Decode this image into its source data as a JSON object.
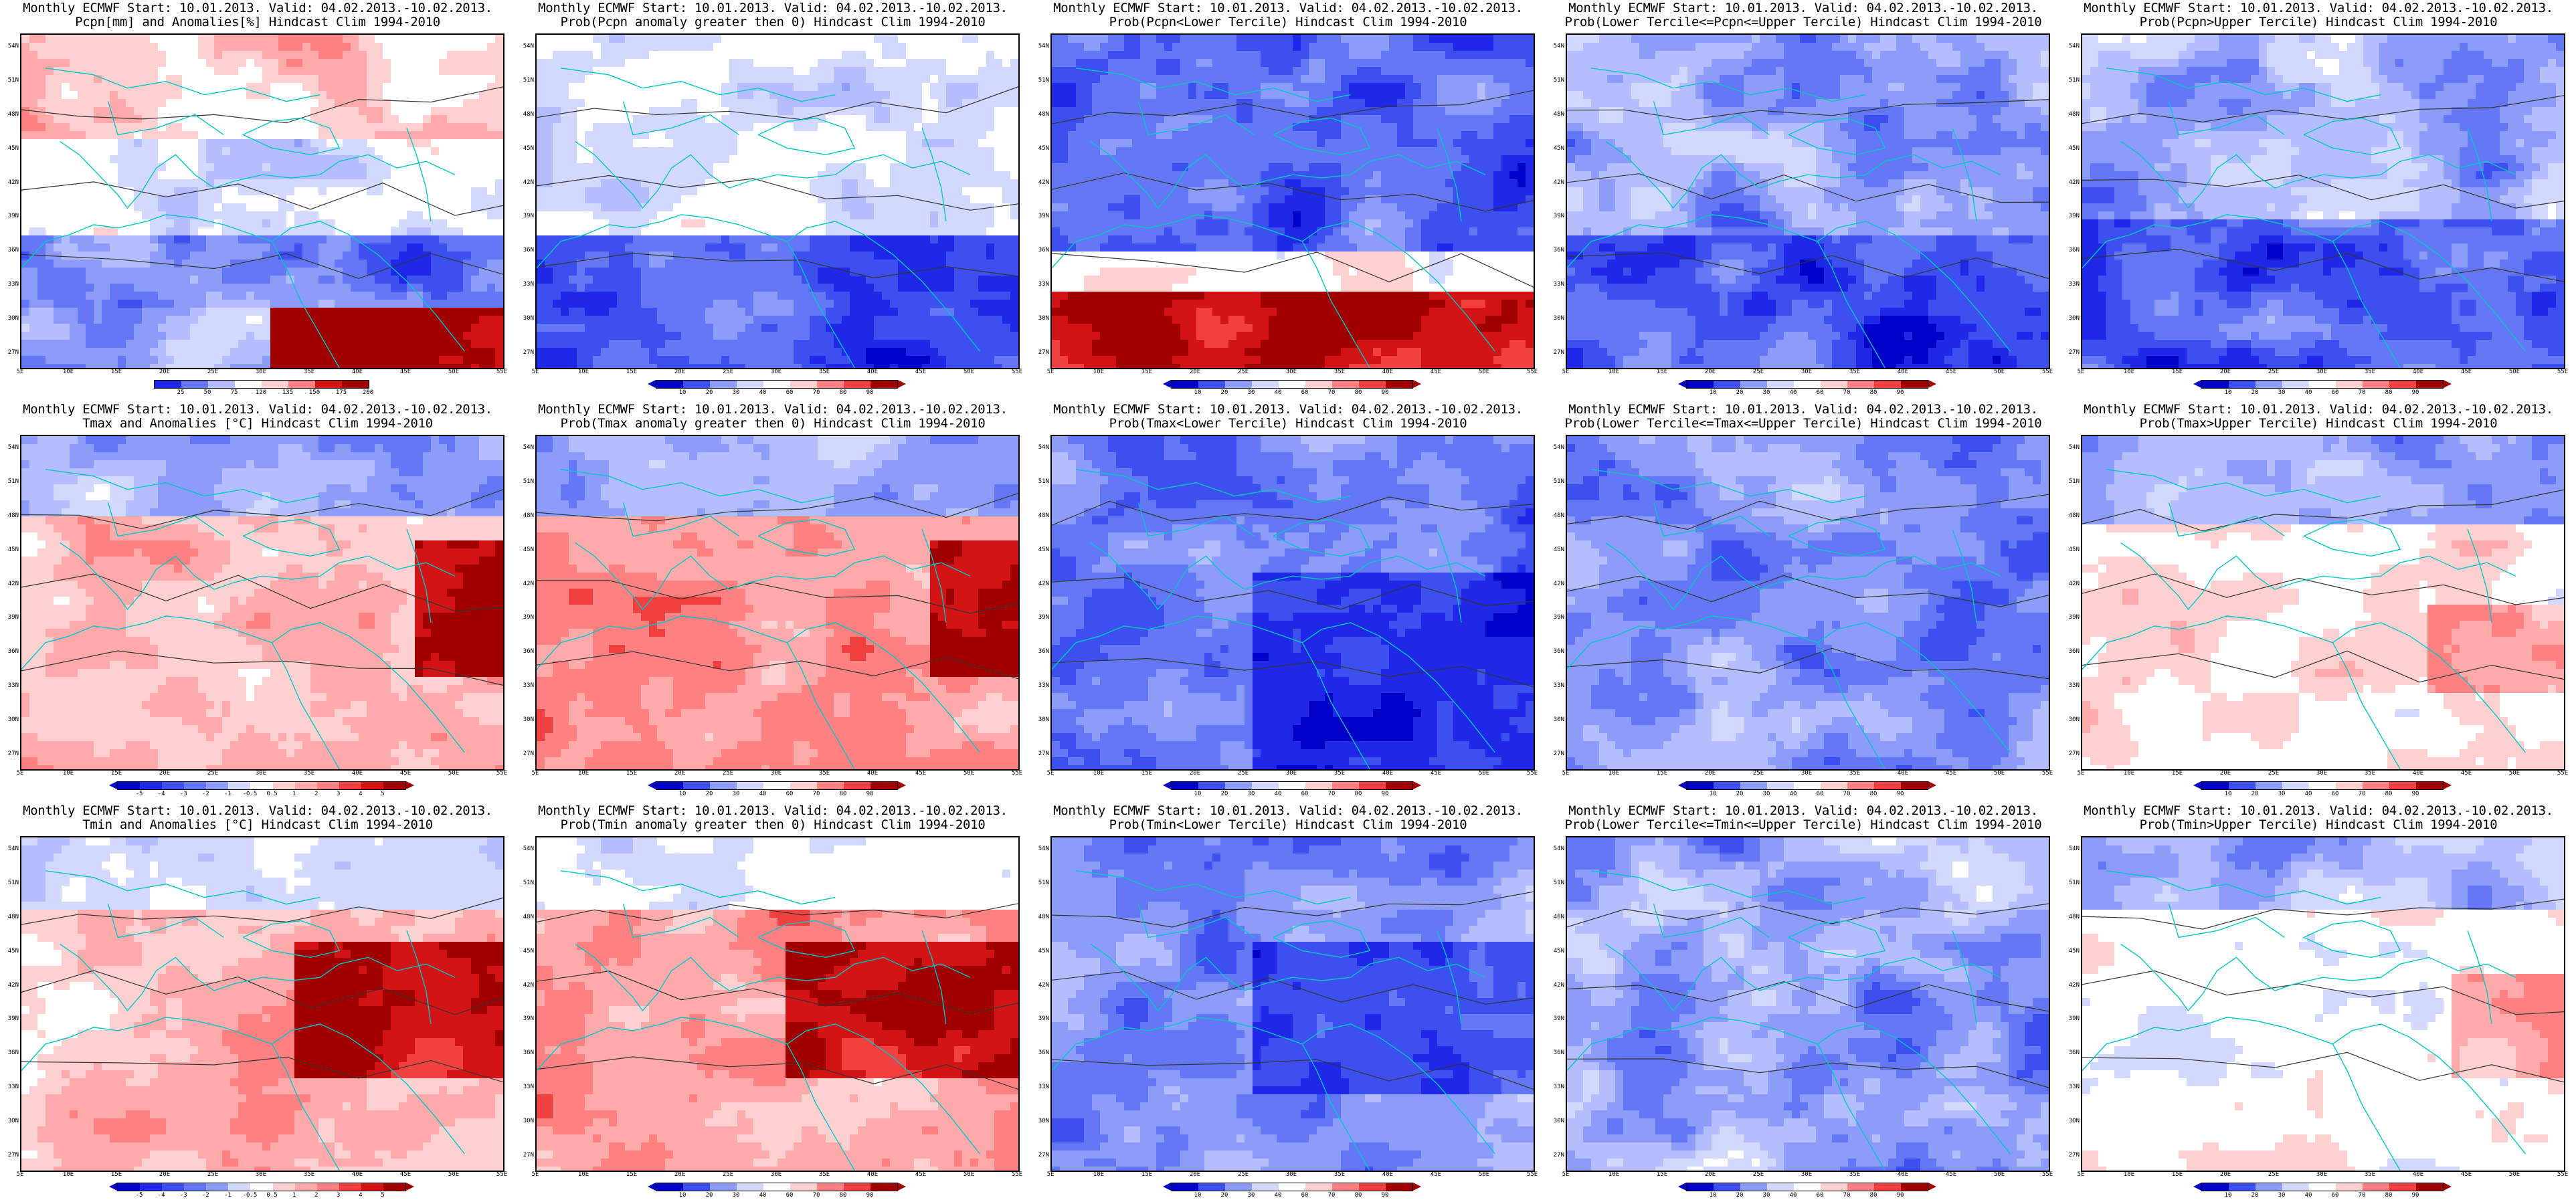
{
  "title_line1": "Monthly ECMWF Start: 10.01.2013. Valid: 04.02.2013.-10.02.2013.",
  "lat_labels": [
    "54N",
    "51N",
    "48N",
    "45N",
    "42N",
    "39N",
    "36N",
    "33N",
    "30N",
    "27N"
  ],
  "lon_labels": [
    "5E",
    "10E",
    "15E",
    "20E",
    "25E",
    "30E",
    "35E",
    "40E",
    "45E",
    "50E",
    "55E"
  ],
  "colors": {
    "blue_scale": [
      "#0000c8",
      "#1e28e6",
      "#3c50f0",
      "#6478f5",
      "#8c9cf8",
      "#b4beff",
      "#d2d8ff"
    ],
    "red_scale": [
      "#ffd0d0",
      "#ffaaaa",
      "#ff8080",
      "#f04040",
      "#d21414",
      "#a00000"
    ],
    "white": "#ffffff",
    "coast": "#00c8c8",
    "contour": "#333333"
  },
  "panels": [
    {
      "subtitle": "Pcpn[mm] and Anomalies[%] Hindcast Clim 1994-2010",
      "scheme": "pcpn_anom",
      "colorbar": {
        "labels": [
          "25",
          "50",
          "75",
          "120",
          "135",
          "150",
          "175",
          "200"
        ],
        "colors": [
          "#1e28e6",
          "#6478f5",
          "#b4beff",
          "#ffffff",
          "#ffd0d0",
          "#ff8080",
          "#d21414",
          "#a00000"
        ],
        "has_tri": false
      }
    },
    {
      "subtitle": "Prob(Pcpn anomaly greater then 0) Hindcast Clim 1994-2010",
      "scheme": "pcpn_prob0",
      "colorbar": {
        "labels": [
          "10",
          "20",
          "30",
          "40",
          "60",
          "70",
          "80",
          "90"
        ],
        "colors": [
          "#0000c8",
          "#3c50f0",
          "#8c9cf8",
          "#d2d8ff",
          "#ffffff",
          "#ffd0d0",
          "#ff8080",
          "#f04040",
          "#a00000"
        ],
        "has_tri": true
      }
    },
    {
      "subtitle": "Prob(Pcpn<Lower Tercile) Hindcast Clim 1994-2010",
      "scheme": "pcpn_low",
      "colorbar": {
        "labels": [
          "10",
          "20",
          "30",
          "40",
          "60",
          "70",
          "80",
          "90"
        ],
        "colors": [
          "#0000c8",
          "#3c50f0",
          "#8c9cf8",
          "#d2d8ff",
          "#ffffff",
          "#ffd0d0",
          "#ff8080",
          "#f04040",
          "#a00000"
        ],
        "has_tri": true
      }
    },
    {
      "subtitle": "Prob(Lower Tercile<=Pcpn<=Upper Tercile) Hindcast Clim 1994-2010",
      "scheme": "pcpn_mid",
      "colorbar": {
        "labels": [
          "10",
          "20",
          "30",
          "40",
          "60",
          "70",
          "80",
          "90"
        ],
        "colors": [
          "#0000c8",
          "#3c50f0",
          "#8c9cf8",
          "#d2d8ff",
          "#ffffff",
          "#ffd0d0",
          "#ff8080",
          "#f04040",
          "#a00000"
        ],
        "has_tri": true
      }
    },
    {
      "subtitle": "Prob(Pcpn>Upper Tercile) Hindcast Clim 1994-2010",
      "scheme": "pcpn_up",
      "colorbar": {
        "labels": [
          "10",
          "20",
          "30",
          "40",
          "60",
          "70",
          "80",
          "90"
        ],
        "colors": [
          "#0000c8",
          "#3c50f0",
          "#8c9cf8",
          "#d2d8ff",
          "#ffffff",
          "#ffd0d0",
          "#ff8080",
          "#f04040",
          "#a00000"
        ],
        "has_tri": true
      }
    },
    {
      "subtitle": "Tmax and Anomalies [°C] Hindcast Clim 1994-2010",
      "scheme": "tmax_anom",
      "colorbar": {
        "labels": [
          "-5",
          "-4",
          "-3",
          "-2",
          "-1",
          "-0.5",
          "0.5",
          "1",
          "2",
          "3",
          "4",
          "5"
        ],
        "colors": [
          "#0000c8",
          "#1e28e6",
          "#3c50f0",
          "#6478f5",
          "#8c9cf8",
          "#d2d8ff",
          "#ffffff",
          "#ffd0d0",
          "#ffaaaa",
          "#ff8080",
          "#f04040",
          "#d21414",
          "#a00000"
        ],
        "has_tri": true
      }
    },
    {
      "subtitle": "Prob(Tmax anomaly greater then 0) Hindcast Clim 1994-2010",
      "scheme": "tmax_prob0",
      "colorbar": {
        "labels": [
          "10",
          "20",
          "30",
          "40",
          "60",
          "70",
          "80",
          "90"
        ],
        "colors": [
          "#0000c8",
          "#3c50f0",
          "#8c9cf8",
          "#d2d8ff",
          "#ffffff",
          "#ffd0d0",
          "#ff8080",
          "#f04040",
          "#a00000"
        ],
        "has_tri": true
      }
    },
    {
      "subtitle": "Prob(Tmax<Lower Tercile) Hindcast Clim 1994-2010",
      "scheme": "tmax_low",
      "colorbar": {
        "labels": [
          "10",
          "20",
          "30",
          "40",
          "60",
          "70",
          "80",
          "90"
        ],
        "colors": [
          "#0000c8",
          "#3c50f0",
          "#8c9cf8",
          "#d2d8ff",
          "#ffffff",
          "#ffd0d0",
          "#ff8080",
          "#f04040",
          "#a00000"
        ],
        "has_tri": true
      }
    },
    {
      "subtitle": "Prob(Lower Tercile<=Tmax<=Upper Tercile) Hindcast Clim 1994-2010",
      "scheme": "tmax_mid",
      "colorbar": {
        "labels": [
          "10",
          "20",
          "30",
          "40",
          "60",
          "70",
          "80",
          "90"
        ],
        "colors": [
          "#0000c8",
          "#3c50f0",
          "#8c9cf8",
          "#d2d8ff",
          "#ffffff",
          "#ffd0d0",
          "#ff8080",
          "#f04040",
          "#a00000"
        ],
        "has_tri": true
      }
    },
    {
      "subtitle": "Prob(Tmax>Upper Tercile) Hindcast Clim 1994-2010",
      "scheme": "tmax_up",
      "colorbar": {
        "labels": [
          "10",
          "20",
          "30",
          "40",
          "60",
          "70",
          "80",
          "90"
        ],
        "colors": [
          "#0000c8",
          "#3c50f0",
          "#8c9cf8",
          "#d2d8ff",
          "#ffffff",
          "#ffd0d0",
          "#ff8080",
          "#f04040",
          "#a00000"
        ],
        "has_tri": true
      }
    },
    {
      "subtitle": "Tmin and Anomalies [°C] Hindcast Clim 1994-2010",
      "scheme": "tmin_anom",
      "colorbar": {
        "labels": [
          "-5",
          "-4",
          "-3",
          "-2",
          "-1",
          "-0.5",
          "0.5",
          "1",
          "2",
          "3",
          "4",
          "5"
        ],
        "colors": [
          "#0000c8",
          "#1e28e6",
          "#3c50f0",
          "#6478f5",
          "#8c9cf8",
          "#d2d8ff",
          "#ffffff",
          "#ffd0d0",
          "#ffaaaa",
          "#ff8080",
          "#f04040",
          "#d21414",
          "#a00000"
        ],
        "has_tri": true
      }
    },
    {
      "subtitle": "Prob(Tmin anomaly greater then 0) Hindcast Clim 1994-2010",
      "scheme": "tmin_prob0",
      "colorbar": {
        "labels": [
          "10",
          "20",
          "30",
          "40",
          "60",
          "70",
          "80",
          "90"
        ],
        "colors": [
          "#0000c8",
          "#3c50f0",
          "#8c9cf8",
          "#d2d8ff",
          "#ffffff",
          "#ffd0d0",
          "#ff8080",
          "#f04040",
          "#a00000"
        ],
        "has_tri": true
      }
    },
    {
      "subtitle": "Prob(Tmin<Lower Tercile) Hindcast Clim 1994-2010",
      "scheme": "tmin_low",
      "colorbar": {
        "labels": [
          "10",
          "20",
          "30",
          "40",
          "60",
          "70",
          "80",
          "90"
        ],
        "colors": [
          "#0000c8",
          "#3c50f0",
          "#8c9cf8",
          "#d2d8ff",
          "#ffffff",
          "#ffd0d0",
          "#ff8080",
          "#f04040",
          "#a00000"
        ],
        "has_tri": true
      }
    },
    {
      "subtitle": "Prob(Lower Tercile<=Tmin<=Upper Tercile) Hindcast Clim 1994-2010",
      "scheme": "tmin_mid",
      "colorbar": {
        "labels": [
          "10",
          "20",
          "30",
          "40",
          "60",
          "70",
          "80",
          "90"
        ],
        "colors": [
          "#0000c8",
          "#3c50f0",
          "#8c9cf8",
          "#d2d8ff",
          "#ffffff",
          "#ffd0d0",
          "#ff8080",
          "#f04040",
          "#a00000"
        ],
        "has_tri": true
      }
    },
    {
      "subtitle": "Prob(Tmin>Upper Tercile) Hindcast Clim 1994-2010",
      "scheme": "tmin_up",
      "colorbar": {
        "labels": [
          "10",
          "20",
          "30",
          "40",
          "60",
          "70",
          "80",
          "90"
        ],
        "colors": [
          "#0000c8",
          "#3c50f0",
          "#8c9cf8",
          "#d2d8ff",
          "#ffffff",
          "#ffd0d0",
          "#ff8080",
          "#f04040",
          "#a00000"
        ],
        "has_tri": true
      }
    }
  ]
}
